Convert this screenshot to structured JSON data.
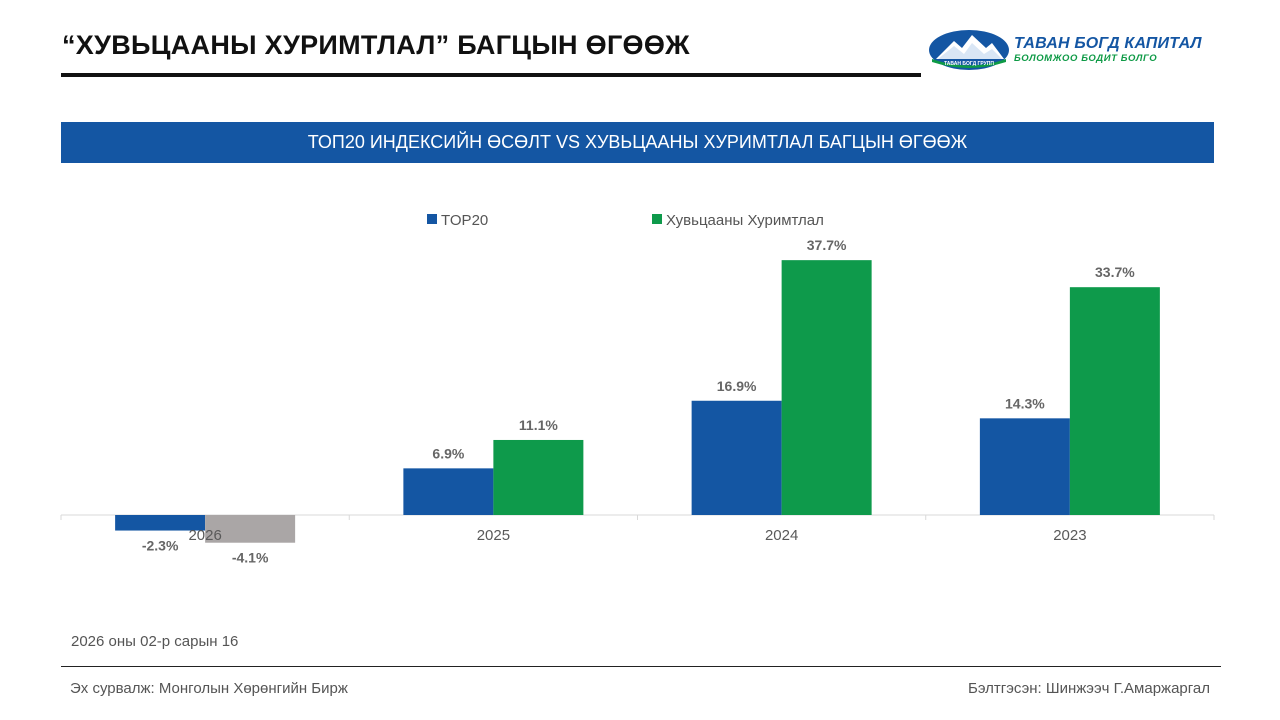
{
  "header": {
    "title": "“ХУВЬЦААНЫ ХУРИМТЛАЛ” БАГЦЫН ӨГӨӨЖ"
  },
  "logo": {
    "name": "ТАВАН БОГД КАПИТАЛ",
    "slogan": "БОЛОМЖОО БОДИТ БОЛГО",
    "badge": "ТАВАН БОГД ГРУПП",
    "colors": {
      "blue": "#1456a3",
      "green": "#0e9a46"
    }
  },
  "footer": {
    "date_note": "2026 оны 02-р сарын 16",
    "source": "Эх сурвалж: Монголын Хөрөнгийн Бирж",
    "author": "Бэлтгэсэн: Шинжээч Г.Амаржаргал"
  },
  "chart_data": {
    "type": "bar",
    "title": "ТОП20 ИНДЕКСИЙН ӨСӨЛТ VS ХУВЬЦААНЫ ХУРИМТЛАЛ БАГЦЫН ӨГӨӨЖ",
    "categories": [
      "2026",
      "2025",
      "2024",
      "2023"
    ],
    "series": [
      {
        "name": "TOP20",
        "color": "#1456a3",
        "values": [
          -2.3,
          6.9,
          16.9,
          14.3
        ],
        "labels": [
          "-2.3%",
          "6.9%",
          "16.9%",
          "14.3%"
        ]
      },
      {
        "name": "Хувьцааны Хуримтлал",
        "color": "#0e9a4b",
        "values": [
          -4.1,
          11.1,
          37.7,
          33.7
        ],
        "labels": [
          "-4.1%",
          "11.1%",
          "37.7%",
          "33.7%"
        ]
      }
    ],
    "highlight": {
      "category": "2026",
      "series": "Хувьцааны Хуримтлал",
      "color": "#aaa6a6"
    },
    "ylim": [
      -6,
      42
    ],
    "legend": "top-center",
    "grid": false,
    "xlabel": "",
    "ylabel": ""
  }
}
